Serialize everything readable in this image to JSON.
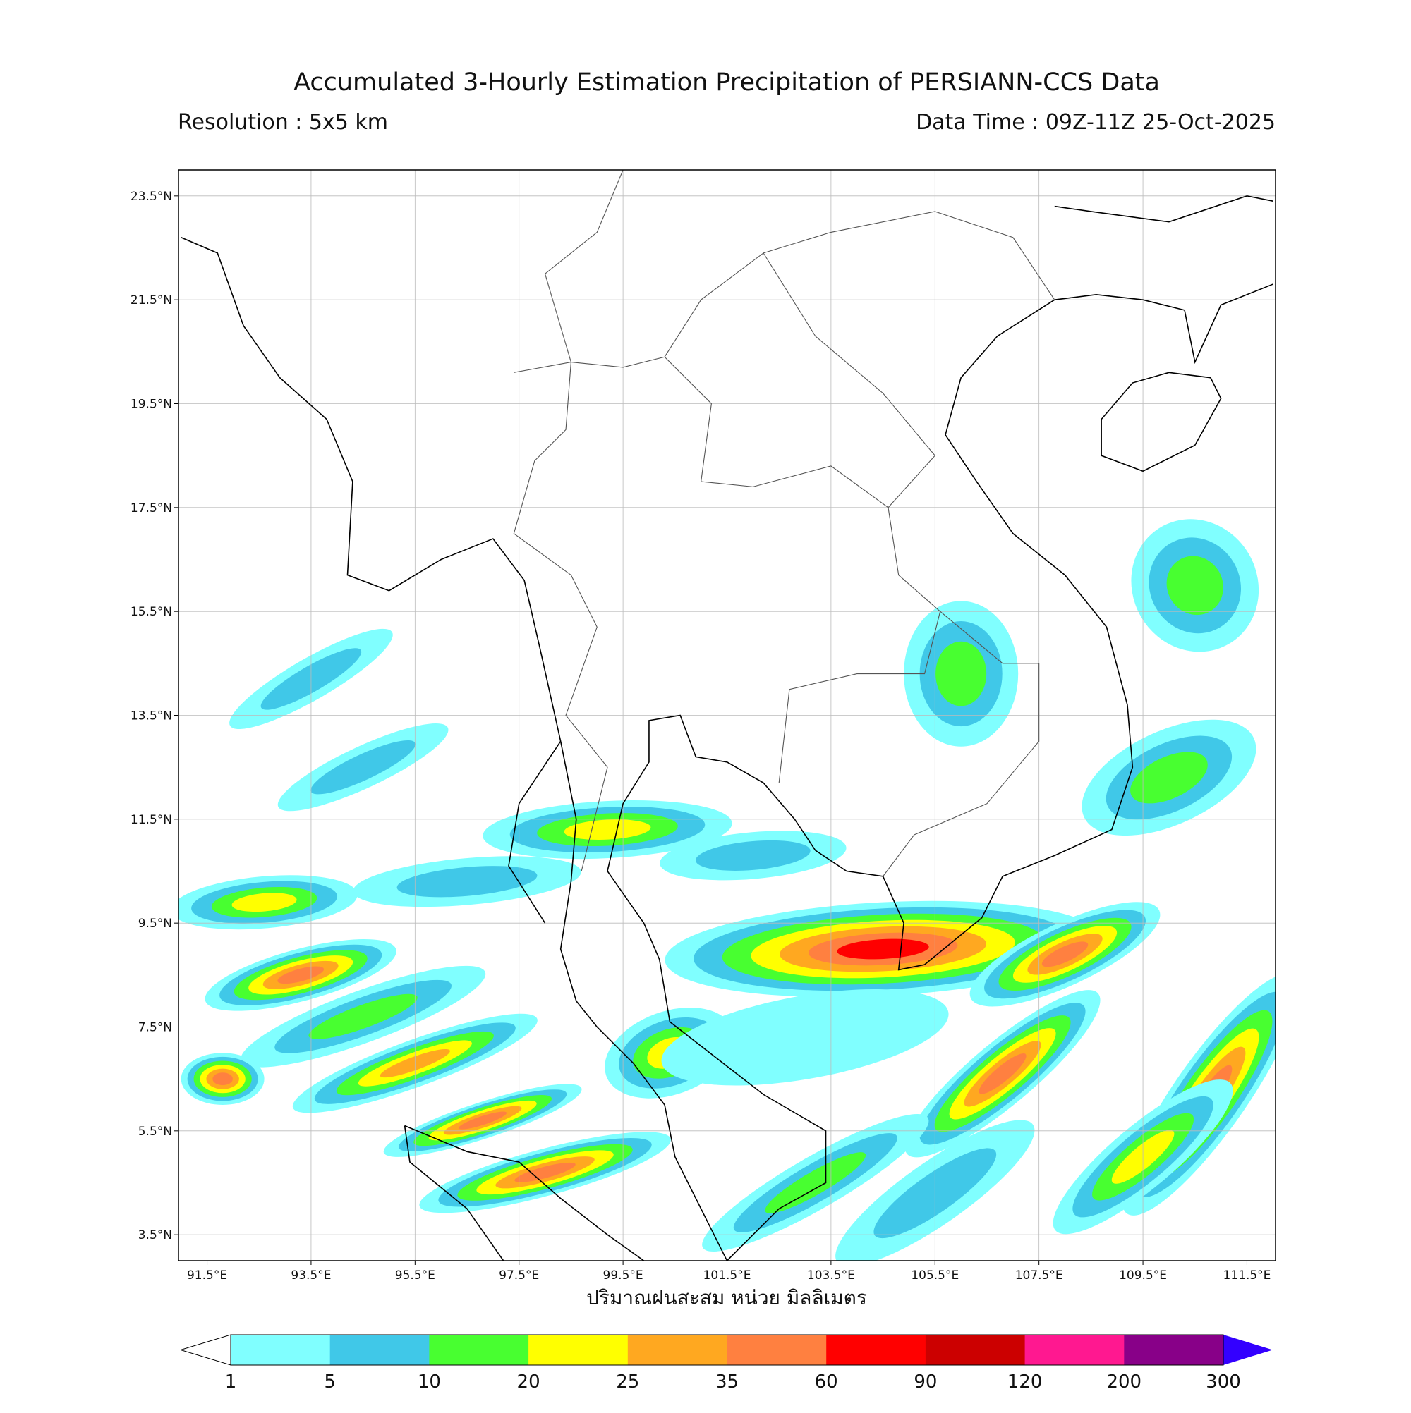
{
  "chart_data": {
    "type": "map",
    "title": "Accumulated 3-Hourly Estimation Precipitation of PERSIANN-CCS Data",
    "resolution": "Resolution : 5x5 km",
    "data_time": "Data Time : 09Z-11Z 25-Oct-2025",
    "x_label": "ปริมาณฝนสะสม หน่วย มิลลิเมตร",
    "xlim": [
      90.95,
      112.05
    ],
    "ylim": [
      3.0,
      24.0
    ],
    "xticks": [
      {
        "value": 91.5,
        "label": "91.5°E"
      },
      {
        "value": 93.5,
        "label": "93.5°E"
      },
      {
        "value": 95.5,
        "label": "95.5°E"
      },
      {
        "value": 97.5,
        "label": "97.5°E"
      },
      {
        "value": 99.5,
        "label": "99.5°E"
      },
      {
        "value": 101.5,
        "label": "101.5°E"
      },
      {
        "value": 103.5,
        "label": "103.5°E"
      },
      {
        "value": 105.5,
        "label": "105.5°E"
      },
      {
        "value": 107.5,
        "label": "107.5°E"
      },
      {
        "value": 109.5,
        "label": "109.5°E"
      },
      {
        "value": 111.5,
        "label": "111.5°E"
      }
    ],
    "yticks": [
      {
        "value": 3.5,
        "label": "3.5°N"
      },
      {
        "value": 5.5,
        "label": "5.5°N"
      },
      {
        "value": 7.5,
        "label": "7.5°N"
      },
      {
        "value": 9.5,
        "label": "9.5°N"
      },
      {
        "value": 11.5,
        "label": "11.5°N"
      },
      {
        "value": 13.5,
        "label": "13.5°N"
      },
      {
        "value": 15.5,
        "label": "15.5°N"
      },
      {
        "value": 17.5,
        "label": "17.5°N"
      },
      {
        "value": 19.5,
        "label": "19.5°N"
      },
      {
        "value": 21.5,
        "label": "21.5°N"
      },
      {
        "value": 23.5,
        "label": "23.5°N"
      }
    ],
    "grid": true,
    "colorbar": {
      "levels": [
        1,
        5,
        10,
        20,
        25,
        35,
        60,
        90,
        120,
        200,
        300
      ],
      "colors": [
        "#80ffff",
        "#40c8e8",
        "#48ff30",
        "#ffff00",
        "#ffa820",
        "#ff8040",
        "#ff0000",
        "#cc0000",
        "#ff1890",
        "#880088"
      ],
      "under_color": "#ffffff",
      "over_color": "#3300ff"
    }
  }
}
